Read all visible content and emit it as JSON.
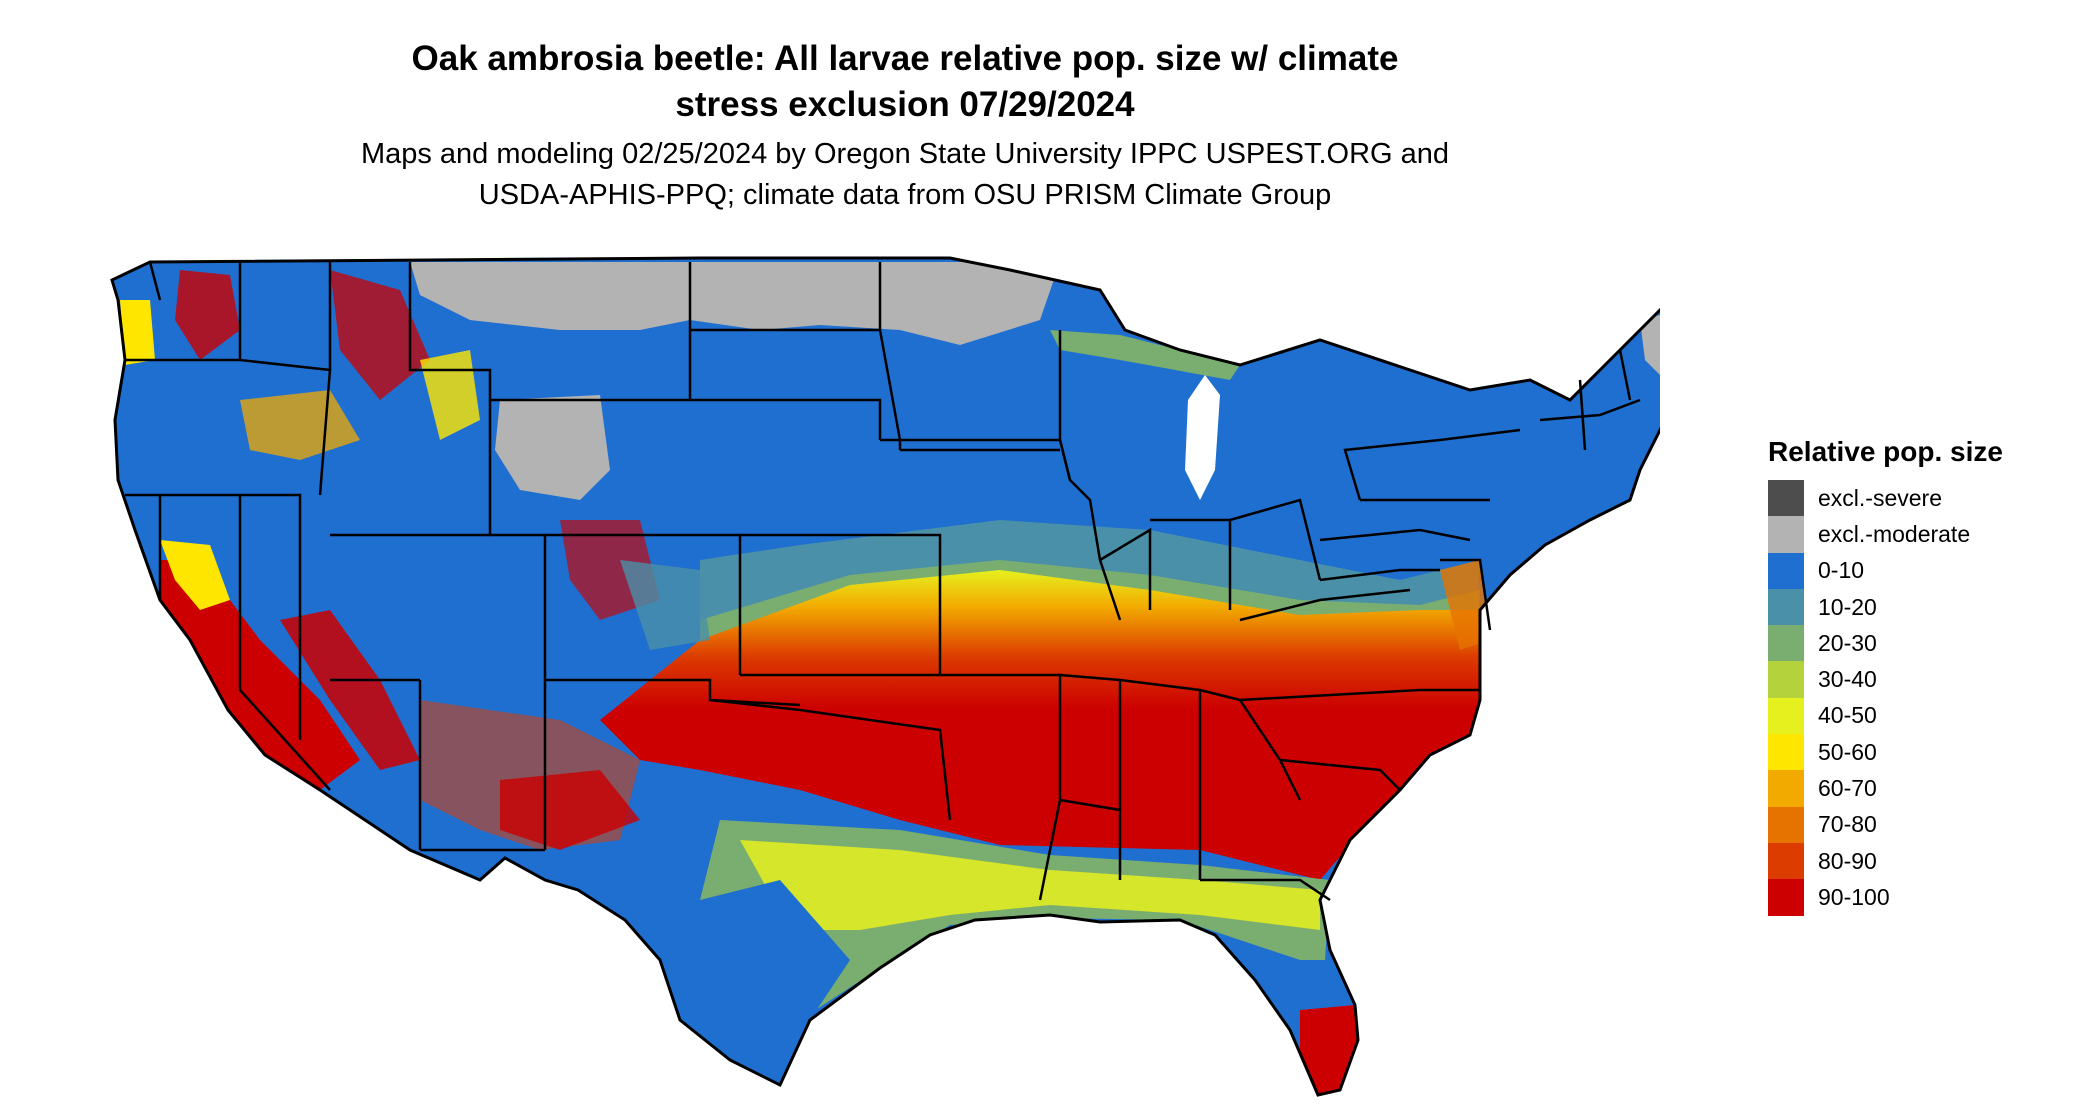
{
  "title_line1": "Oak ambrosia beetle: All larvae relative pop. size w/ climate",
  "title_line2": "stress exclusion 07/29/2024",
  "subtitle_line1": "Maps and modeling 02/25/2024 by Oregon State University IPPC USPEST.ORG and",
  "subtitle_line2": "USDA-APHIS-PPQ; climate data from OSU PRISM Climate Group",
  "legend": {
    "title": "Relative pop. size",
    "items": [
      {
        "label": "excl.-severe",
        "color": "#4d4d4d"
      },
      {
        "label": "excl.-moderate",
        "color": "#b3b3b3"
      },
      {
        "label": "0-10",
        "color": "#1f6fd0"
      },
      {
        "label": "10-20",
        "color": "#4a90a8"
      },
      {
        "label": "20-30",
        "color": "#7aad70"
      },
      {
        "label": "30-40",
        "color": "#b4d23c"
      },
      {
        "label": "40-50",
        "color": "#e6f01e"
      },
      {
        "label": "50-60",
        "color": "#ffe600"
      },
      {
        "label": "60-70",
        "color": "#f2aa00"
      },
      {
        "label": "70-80",
        "color": "#e67300"
      },
      {
        "label": "80-90",
        "color": "#dc3c00"
      },
      {
        "label": "90-100",
        "color": "#cc0000"
      }
    ]
  }
}
